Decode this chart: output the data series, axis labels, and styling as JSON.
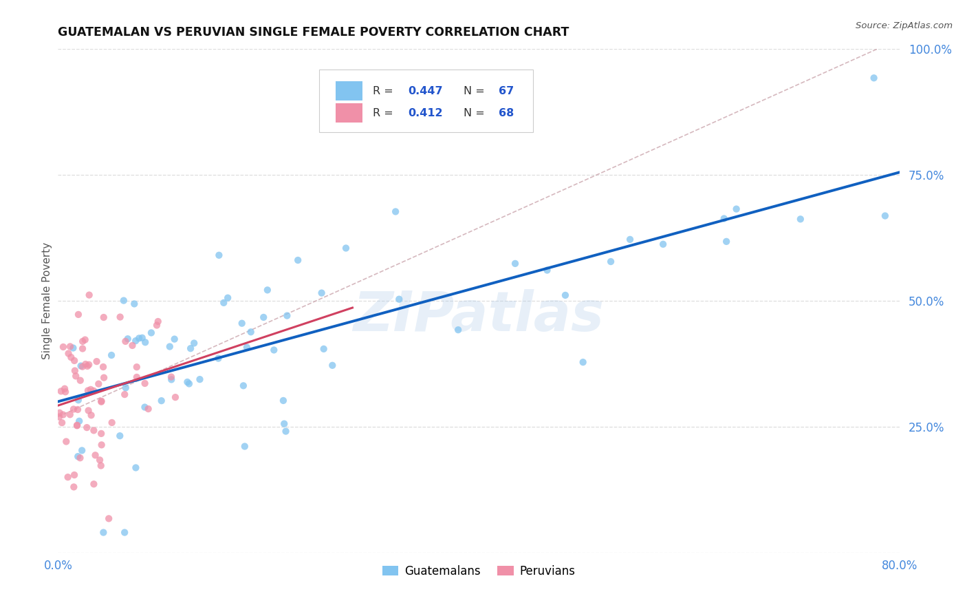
{
  "title": "GUATEMALAN VS PERUVIAN SINGLE FEMALE POVERTY CORRELATION CHART",
  "source": "Source: ZipAtlas.com",
  "ylabel": "Single Female Poverty",
  "legend_label1": "Guatemalans",
  "legend_label2": "Peruvians",
  "color_blue": "#82C4F0",
  "color_pink": "#F090A8",
  "color_line_blue": "#1060C0",
  "color_line_pink": "#D04060",
  "color_diagonal": "#C8A0A8",
  "color_title": "#111111",
  "color_source": "#555555",
  "color_axis_blue": "#4488DD",
  "color_legend_text": "#2255CC",
  "background_color": "#FFFFFF",
  "grid_color": "#DDDDDD",
  "xlim": [
    0.0,
    0.8
  ],
  "ylim": [
    0.0,
    1.0
  ],
  "R1": 0.447,
  "N1": 67,
  "R2": 0.412,
  "N2": 68,
  "seed": 7,
  "watermark": "ZIPatlas",
  "watermark_color": "#B0CCEA"
}
